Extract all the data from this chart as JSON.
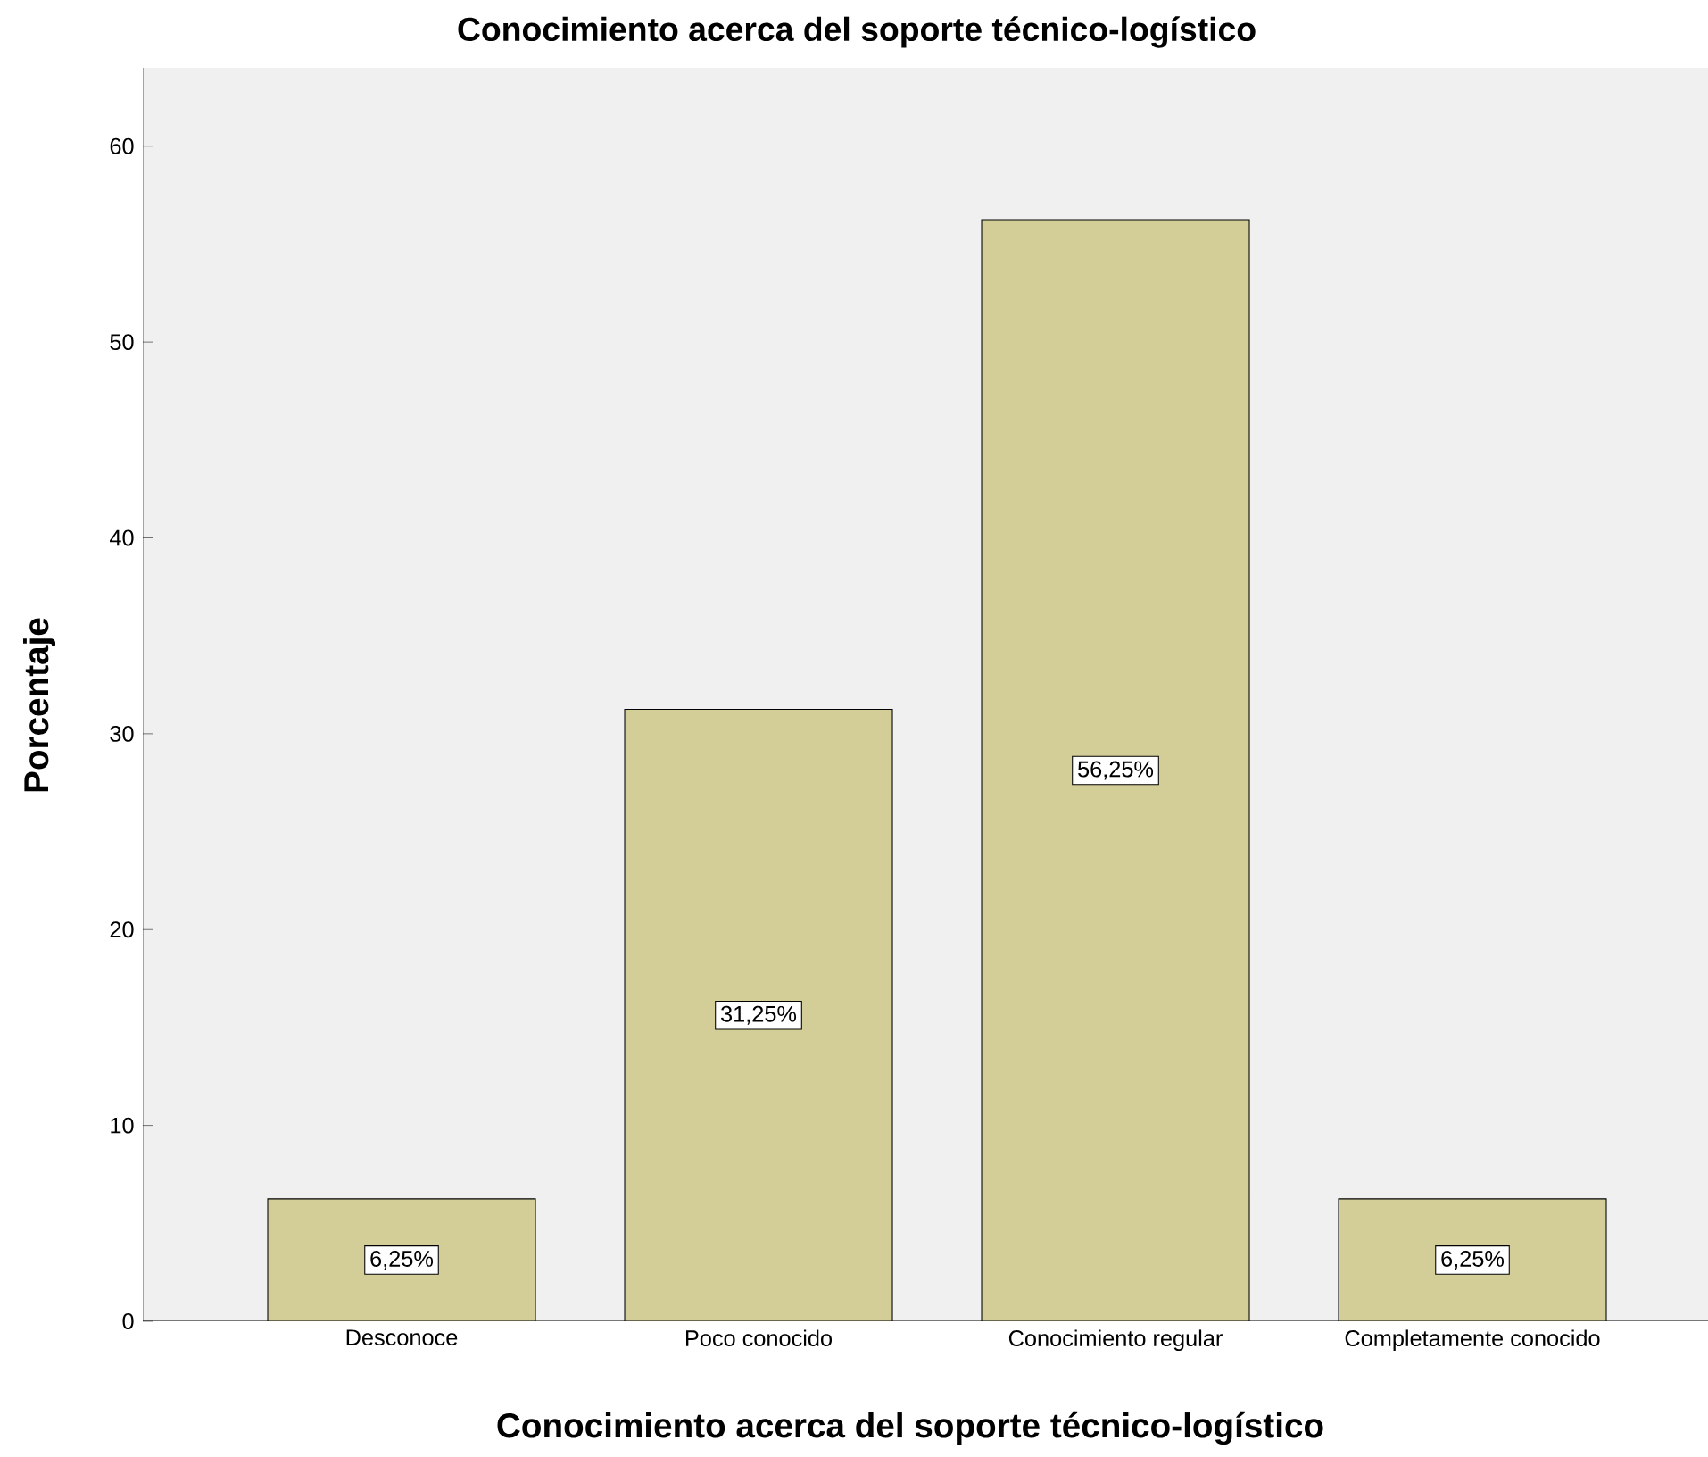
{
  "chart_data": {
    "type": "bar",
    "title": "Conocimiento acerca del soporte técnico-logístico",
    "xlabel": "Conocimiento acerca del soporte técnico-logístico",
    "ylabel": "Porcentaje",
    "categories": [
      "Desconoce",
      "Poco conocido",
      "Conocimiento regular",
      "Completamente conocido"
    ],
    "values": [
      6.25,
      31.25,
      56.25,
      6.25
    ],
    "value_labels": [
      "6,25%",
      "31,25%",
      "56,25%",
      "6,25%"
    ],
    "color": "#d3ce97",
    "ylim": [
      0,
      64
    ],
    "yticks": [
      0,
      10,
      20,
      30,
      40,
      50,
      60
    ],
    "grid": false
  }
}
